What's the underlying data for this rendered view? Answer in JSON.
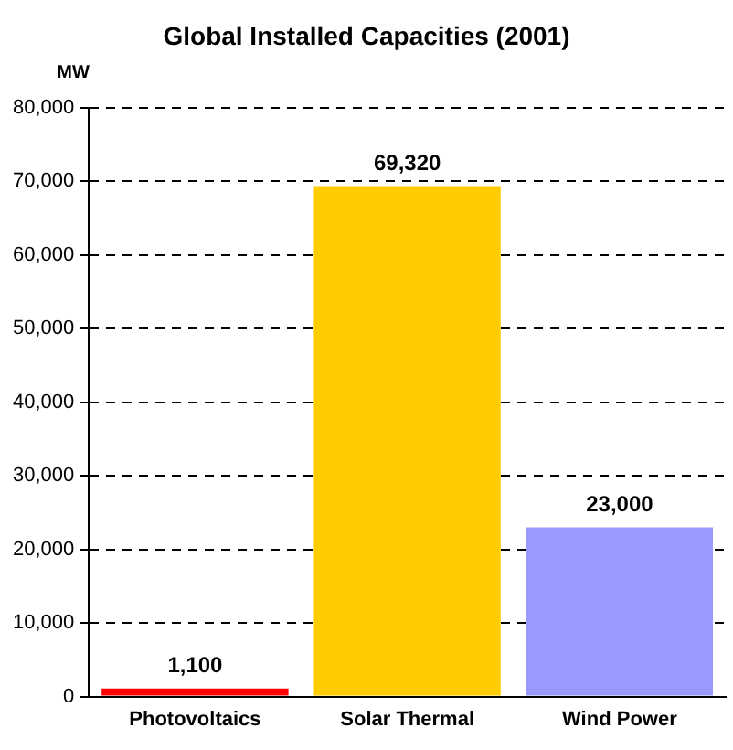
{
  "chart_data": {
    "type": "bar",
    "title": "Global Installed Capacities (2001)",
    "ylabel": "MW",
    "categories": [
      "Photovoltaics",
      "Solar Thermal",
      "Wind Power"
    ],
    "values": [
      1100,
      69320,
      23000
    ],
    "colors": [
      "#ff0000",
      "#ffcc00",
      "#9999ff"
    ],
    "ylim": [
      0,
      80000
    ],
    "yticks": [
      {
        "value": 0,
        "label": "0"
      },
      {
        "value": 10000,
        "label": "10,000"
      },
      {
        "value": 20000,
        "label": "20,000"
      },
      {
        "value": 30000,
        "label": "30,000"
      },
      {
        "value": 40000,
        "label": "40,000"
      },
      {
        "value": 50000,
        "label": "50,000"
      },
      {
        "value": 60000,
        "label": "60,000"
      },
      {
        "value": 70000,
        "label": "70,000"
      },
      {
        "value": 80000,
        "label": "80,000"
      }
    ],
    "value_labels": [
      "1,100",
      "69,320",
      "23,000"
    ],
    "grid": "y",
    "legend": false
  }
}
